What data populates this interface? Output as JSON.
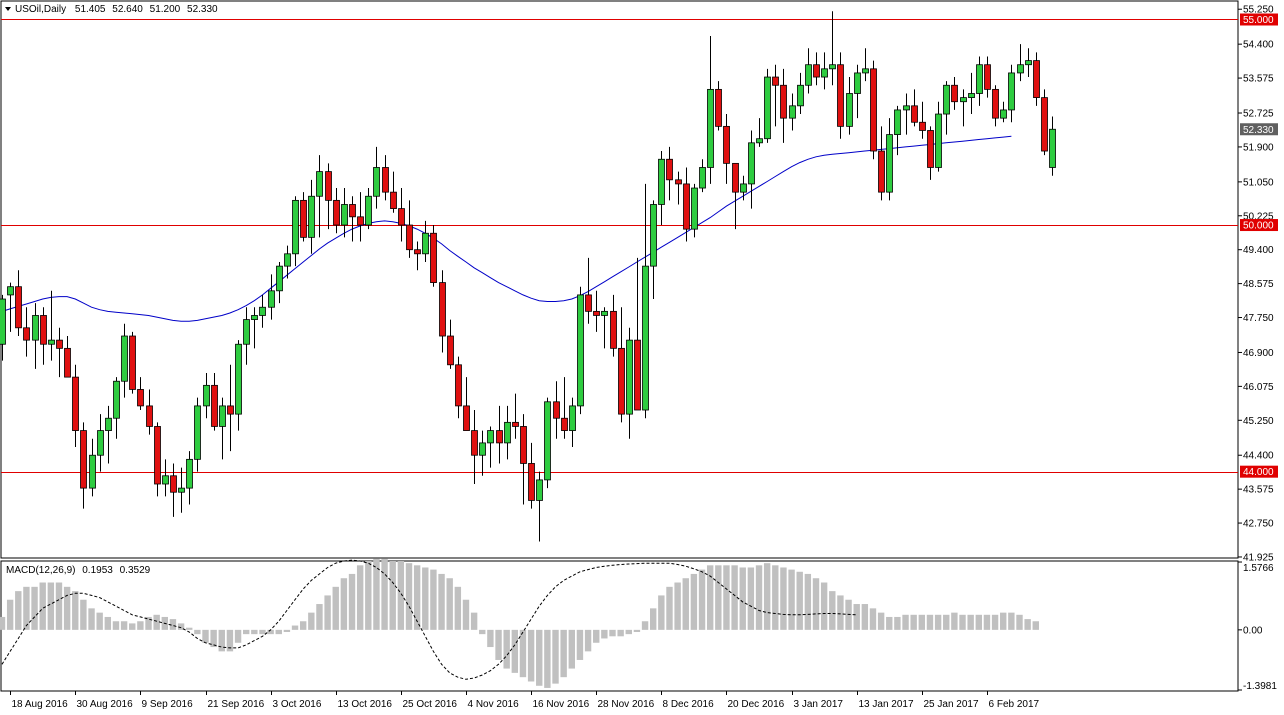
{
  "header": {
    "symbol": "USOil,Daily",
    "open": "51.405",
    "high": "52.640",
    "low": "51.200",
    "close": "52.330"
  },
  "macd_header": {
    "label": "MACD(12,26,9)",
    "main": "0.1953",
    "signal": "0.3529"
  },
  "colors": {
    "bull": "#2ecc40",
    "bear": "#e01010",
    "level_line": "#e00000",
    "ma_line": "#0000c8",
    "histogram": "#c0c0c0",
    "signal_line": "#000000",
    "label_bg_red": "#e00000",
    "label_bg_gray": "#606060"
  },
  "chart_data": [
    {
      "type": "candlestick",
      "title": "USOil,Daily",
      "price_ticks": [
        "55.250",
        "54.400",
        "53.575",
        "52.725",
        "51.900",
        "51.050",
        "50.225",
        "49.400",
        "48.575",
        "47.750",
        "46.900",
        "46.075",
        "45.250",
        "44.400",
        "43.575",
        "42.750",
        "41.925"
      ],
      "ylim": [
        41.9,
        55.45
      ],
      "x_tick_labels": [
        "18 Aug 2016",
        "30 Aug 2016",
        "9 Sep 2016",
        "21 Sep 2016",
        "3 Oct 2016",
        "13 Oct 2016",
        "25 Oct 2016",
        "4 Nov 2016",
        "16 Nov 2016",
        "28 Nov 2016",
        "8 Dec 2016",
        "20 Dec 2016",
        "3 Jan 2017",
        "13 Jan 2017",
        "25 Jan 2017",
        "6 Feb 2017"
      ],
      "x_tick_indices": [
        1,
        9,
        17,
        25,
        33,
        41,
        49,
        57,
        65,
        73,
        81,
        89,
        97,
        105,
        113,
        121
      ],
      "levels": [
        {
          "value": "55.000",
          "price": 55.0
        },
        {
          "value": "50.000",
          "price": 50.0
        },
        {
          "value": "44.000",
          "price": 44.0
        }
      ],
      "current_price": "52.330",
      "ohlc": [
        [
          47.1,
          48.3,
          46.7,
          48.2
        ],
        [
          48.3,
          48.6,
          47.4,
          48.5
        ],
        [
          48.5,
          48.9,
          47.3,
          47.5
        ],
        [
          47.5,
          48.0,
          46.8,
          47.2
        ],
        [
          47.2,
          48.1,
          46.5,
          47.8
        ],
        [
          47.8,
          48.0,
          46.6,
          47.1
        ],
        [
          47.1,
          48.4,
          46.7,
          47.2
        ],
        [
          47.2,
          47.5,
          46.3,
          47.0
        ],
        [
          47.0,
          47.3,
          46.3,
          46.3
        ],
        [
          46.3,
          46.6,
          44.6,
          45.0
        ],
        [
          45.0,
          45.2,
          43.1,
          43.6
        ],
        [
          43.6,
          44.8,
          43.4,
          44.4
        ],
        [
          44.4,
          45.4,
          44.0,
          45.0
        ],
        [
          45.0,
          45.6,
          44.2,
          45.3
        ],
        [
          45.3,
          46.3,
          44.8,
          46.2
        ],
        [
          46.2,
          47.6,
          45.8,
          47.3
        ],
        [
          47.3,
          47.4,
          45.9,
          46.0
        ],
        [
          46.0,
          46.3,
          45.5,
          45.6
        ],
        [
          45.6,
          46.0,
          44.9,
          45.1
        ],
        [
          45.1,
          45.2,
          43.4,
          43.7
        ],
        [
          43.7,
          44.3,
          43.4,
          43.9
        ],
        [
          43.9,
          44.2,
          42.9,
          43.5
        ],
        [
          43.5,
          44.1,
          43.0,
          43.6
        ],
        [
          43.6,
          44.5,
          43.2,
          44.3
        ],
        [
          44.3,
          45.8,
          44.0,
          45.6
        ],
        [
          45.6,
          46.4,
          45.3,
          46.1
        ],
        [
          46.1,
          46.4,
          45.0,
          45.1
        ],
        [
          45.1,
          45.8,
          44.3,
          45.6
        ],
        [
          45.6,
          46.6,
          44.5,
          45.4
        ],
        [
          45.4,
          47.2,
          45.0,
          47.1
        ],
        [
          47.1,
          48.0,
          46.6,
          47.7
        ],
        [
          47.7,
          48.0,
          47.0,
          47.8
        ],
        [
          47.8,
          48.3,
          47.5,
          48.0
        ],
        [
          48.0,
          48.8,
          47.7,
          48.4
        ],
        [
          48.4,
          49.1,
          48.1,
          49.0
        ],
        [
          49.0,
          49.5,
          48.7,
          49.3
        ],
        [
          49.3,
          50.7,
          49.0,
          50.6
        ],
        [
          50.6,
          50.8,
          49.6,
          49.7
        ],
        [
          49.7,
          51.1,
          49.3,
          50.7
        ],
        [
          50.7,
          51.7,
          49.7,
          51.3
        ],
        [
          51.3,
          51.5,
          49.9,
          50.6
        ],
        [
          50.6,
          50.9,
          49.8,
          50.0
        ],
        [
          50.0,
          50.9,
          49.7,
          50.5
        ],
        [
          50.5,
          50.7,
          49.6,
          50.2
        ],
        [
          50.2,
          50.8,
          49.6,
          50.0
        ],
        [
          50.0,
          50.9,
          49.9,
          50.7
        ],
        [
          50.7,
          51.9,
          50.4,
          51.4
        ],
        [
          51.4,
          51.7,
          50.6,
          50.8
        ],
        [
          50.8,
          51.3,
          50.3,
          50.4
        ],
        [
          50.4,
          50.9,
          49.6,
          50.0
        ],
        [
          50.0,
          50.6,
          49.2,
          49.4
        ],
        [
          49.4,
          49.6,
          48.9,
          49.3
        ],
        [
          49.3,
          50.1,
          49.1,
          49.8
        ],
        [
          49.8,
          50.0,
          48.5,
          48.6
        ],
        [
          48.6,
          48.9,
          46.9,
          47.3
        ],
        [
          47.3,
          47.7,
          46.5,
          46.6
        ],
        [
          46.6,
          46.8,
          45.3,
          45.6
        ],
        [
          45.6,
          46.3,
          45.0,
          45.0
        ],
        [
          45.0,
          45.5,
          43.7,
          44.4
        ],
        [
          44.4,
          45.0,
          43.9,
          44.7
        ],
        [
          44.7,
          45.1,
          44.1,
          45.0
        ],
        [
          45.0,
          45.6,
          44.2,
          44.7
        ],
        [
          44.7,
          45.6,
          44.3,
          45.2
        ],
        [
          45.2,
          45.9,
          44.8,
          45.1
        ],
        [
          45.1,
          45.4,
          43.2,
          44.2
        ],
        [
          44.2,
          44.7,
          43.1,
          43.3
        ],
        [
          43.3,
          44.0,
          42.3,
          43.8
        ],
        [
          43.8,
          45.8,
          43.6,
          45.7
        ],
        [
          45.7,
          46.2,
          44.8,
          45.3
        ],
        [
          45.3,
          46.3,
          44.8,
          45.0
        ],
        [
          45.0,
          45.8,
          44.6,
          45.6
        ],
        [
          45.6,
          48.5,
          45.4,
          48.3
        ],
        [
          48.3,
          49.2,
          47.6,
          47.9
        ],
        [
          47.9,
          48.4,
          47.4,
          47.8
        ],
        [
          47.8,
          48.0,
          47.0,
          47.9
        ],
        [
          47.9,
          48.3,
          46.8,
          47.0
        ],
        [
          47.0,
          48.0,
          45.2,
          45.4
        ],
        [
          45.4,
          47.5,
          44.8,
          47.2
        ],
        [
          47.2,
          49.2,
          45.5,
          45.5
        ],
        [
          45.5,
          51.0,
          45.3,
          49.0
        ],
        [
          49.0,
          50.6,
          48.2,
          50.5
        ],
        [
          50.5,
          51.8,
          50.0,
          51.6
        ],
        [
          51.6,
          51.9,
          50.6,
          51.1
        ],
        [
          51.1,
          51.3,
          50.5,
          51.0
        ],
        [
          51.0,
          51.4,
          49.6,
          49.9
        ],
        [
          49.9,
          51.0,
          49.7,
          50.9
        ],
        [
          50.9,
          51.6,
          50.8,
          51.4
        ],
        [
          51.4,
          54.6,
          51.0,
          53.3
        ],
        [
          53.3,
          53.5,
          52.3,
          52.4
        ],
        [
          52.4,
          52.7,
          51.0,
          51.5
        ],
        [
          51.5,
          51.5,
          49.9,
          50.8
        ],
        [
          50.8,
          51.2,
          50.6,
          51.0
        ],
        [
          51.0,
          52.3,
          50.4,
          52.0
        ],
        [
          52.0,
          52.6,
          51.9,
          52.1
        ],
        [
          52.1,
          53.8,
          52.0,
          53.6
        ],
        [
          53.6,
          53.9,
          52.4,
          53.4
        ],
        [
          53.4,
          53.8,
          52.0,
          52.6
        ],
        [
          52.6,
          53.2,
          52.3,
          52.9
        ],
        [
          52.9,
          53.7,
          52.7,
          53.4
        ],
        [
          53.4,
          54.3,
          53.2,
          53.9
        ],
        [
          53.9,
          54.2,
          53.4,
          53.6
        ],
        [
          53.6,
          54.2,
          53.3,
          53.8
        ],
        [
          53.8,
          55.2,
          53.4,
          53.9
        ],
        [
          53.9,
          54.2,
          52.1,
          52.4
        ],
        [
          52.4,
          53.6,
          52.2,
          53.2
        ],
        [
          53.2,
          53.9,
          52.6,
          53.7
        ],
        [
          53.7,
          54.3,
          53.5,
          53.8
        ],
        [
          53.8,
          54.0,
          51.6,
          51.8
        ],
        [
          51.8,
          52.4,
          50.6,
          50.8
        ],
        [
          50.8,
          52.6,
          50.6,
          52.2
        ],
        [
          52.2,
          52.9,
          51.7,
          52.8
        ],
        [
          52.8,
          53.2,
          52.2,
          52.9
        ],
        [
          52.9,
          53.3,
          52.4,
          52.5
        ],
        [
          52.5,
          53.0,
          52.1,
          52.3
        ],
        [
          52.3,
          52.4,
          51.1,
          51.4
        ],
        [
          51.4,
          53.0,
          51.3,
          52.7
        ],
        [
          52.7,
          53.5,
          52.2,
          53.4
        ],
        [
          53.4,
          53.6,
          52.8,
          53.0
        ],
        [
          53.0,
          53.3,
          52.4,
          53.1
        ],
        [
          53.1,
          53.7,
          52.7,
          53.2
        ],
        [
          53.2,
          54.1,
          52.9,
          53.9
        ],
        [
          53.9,
          54.1,
          53.1,
          53.3
        ],
        [
          53.3,
          53.4,
          52.4,
          52.6
        ],
        [
          52.6,
          53.0,
          52.5,
          52.8
        ],
        [
          52.8,
          53.9,
          52.5,
          53.7
        ],
        [
          53.7,
          54.4,
          53.5,
          53.9
        ],
        [
          53.9,
          54.3,
          53.6,
          54.0
        ],
        [
          54.0,
          54.2,
          52.9,
          53.1
        ],
        [
          53.1,
          53.3,
          51.7,
          51.8
        ],
        [
          51.4,
          52.64,
          51.2,
          52.33
        ]
      ],
      "ma": [
        47.9,
        47.96,
        48.02,
        48.08,
        48.14,
        48.2,
        48.24,
        48.26,
        48.26,
        48.2,
        48.1,
        48.0,
        47.94,
        47.9,
        47.88,
        47.86,
        47.84,
        47.82,
        47.8,
        47.76,
        47.72,
        47.68,
        47.66,
        47.66,
        47.68,
        47.72,
        47.76,
        47.8,
        47.86,
        47.94,
        48.04,
        48.16,
        48.3,
        48.46,
        48.62,
        48.78,
        48.94,
        49.1,
        49.26,
        49.42,
        49.56,
        49.68,
        49.8,
        49.9,
        49.98,
        50.04,
        50.08,
        50.1,
        50.08,
        50.04,
        49.98,
        49.9,
        49.8,
        49.68,
        49.54,
        49.38,
        49.24,
        49.1,
        48.96,
        48.84,
        48.72,
        48.6,
        48.5,
        48.4,
        48.3,
        48.22,
        48.16,
        48.14,
        48.14,
        48.16,
        48.2,
        48.28,
        48.38,
        48.5,
        48.62,
        48.74,
        48.86,
        48.98,
        49.1,
        49.22,
        49.34,
        49.46,
        49.58,
        49.7,
        49.82,
        49.94,
        50.06,
        50.18,
        50.32,
        50.46,
        50.58,
        50.7,
        50.82,
        50.94,
        51.06,
        51.18,
        51.3,
        51.42,
        51.52,
        51.6,
        51.66,
        51.7,
        51.72,
        51.74,
        51.76,
        51.78,
        51.8,
        51.82,
        51.84,
        51.86,
        51.88,
        51.9,
        51.92,
        51.94,
        51.96,
        51.98,
        52.0,
        52.02,
        52.04,
        52.06,
        52.08,
        52.1,
        52.12,
        52.14,
        52.16
      ]
    },
    {
      "type": "bar",
      "title": "MACD(12,26,9)",
      "y_ticks": [
        "1.5766",
        "0.00",
        "-1.3981"
      ],
      "ylim": [
        -1.398,
        1.577
      ],
      "histogram": [
        0.3,
        0.7,
        0.9,
        1.0,
        1.0,
        1.1,
        1.1,
        1.1,
        1.0,
        0.9,
        0.7,
        0.5,
        0.4,
        0.3,
        0.2,
        0.2,
        0.15,
        0.2,
        0.3,
        0.35,
        0.3,
        0.25,
        0.15,
        0.05,
        -0.1,
        -0.3,
        -0.4,
        -0.5,
        -0.5,
        -0.3,
        -0.1,
        -0.1,
        -0.1,
        -0.1,
        -0.1,
        -0.05,
        0.1,
        0.2,
        0.4,
        0.6,
        0.8,
        1.0,
        1.2,
        1.3,
        1.5,
        1.6,
        1.65,
        1.65,
        1.6,
        1.6,
        1.55,
        1.5,
        1.45,
        1.4,
        1.3,
        1.2,
        1.0,
        0.7,
        0.4,
        -0.1,
        -0.4,
        -0.7,
        -0.9,
        -1.0,
        -1.1,
        -1.2,
        -1.3,
        -1.35,
        -1.25,
        -1.1,
        -0.9,
        -0.7,
        -0.5,
        -0.3,
        -0.2,
        -0.15,
        -0.15,
        -0.1,
        -0.05,
        0.2,
        0.5,
        0.8,
        1.0,
        1.1,
        1.2,
        1.3,
        1.4,
        1.5,
        1.5,
        1.5,
        1.5,
        1.45,
        1.45,
        1.5,
        1.55,
        1.5,
        1.45,
        1.4,
        1.35,
        1.3,
        1.2,
        1.1,
        0.9,
        0.8,
        0.7,
        0.6,
        0.6,
        0.5,
        0.4,
        0.3,
        0.3,
        0.35,
        0.35,
        0.35,
        0.35,
        0.35,
        0.35,
        0.4,
        0.35,
        0.35,
        0.35,
        0.35,
        0.35,
        0.4,
        0.4,
        0.35,
        0.25,
        0.2
      ],
      "signal": [
        -0.8,
        -0.5,
        -0.2,
        0.1,
        0.3,
        0.5,
        0.6,
        0.7,
        0.8,
        0.85,
        0.85,
        0.8,
        0.75,
        0.65,
        0.55,
        0.45,
        0.35,
        0.3,
        0.25,
        0.2,
        0.15,
        0.1,
        0.05,
        -0.05,
        -0.2,
        -0.3,
        -0.35,
        -0.4,
        -0.42,
        -0.42,
        -0.35,
        -0.25,
        -0.15,
        0.0,
        0.2,
        0.45,
        0.7,
        0.95,
        1.15,
        1.3,
        1.45,
        1.55,
        1.6,
        1.62,
        1.6,
        1.55,
        1.45,
        1.3,
        1.1,
        0.85,
        0.55,
        0.2,
        -0.15,
        -0.5,
        -0.8,
        -1.0,
        -1.1,
        -1.15,
        -1.12,
        -1.05,
        -0.95,
        -0.8,
        -0.6,
        -0.35,
        -0.05,
        0.25,
        0.55,
        0.8,
        1.0,
        1.15,
        1.25,
        1.35,
        1.4,
        1.45,
        1.48,
        1.5,
        1.52,
        1.53,
        1.54,
        1.55,
        1.55,
        1.55,
        1.55,
        1.52,
        1.48,
        1.42,
        1.35,
        1.25,
        1.1,
        0.95,
        0.8,
        0.65,
        0.55,
        0.45,
        0.4,
        0.38,
        0.36,
        0.35,
        0.35,
        0.36,
        0.37,
        0.38,
        0.38,
        0.37,
        0.36,
        0.35
      ]
    }
  ]
}
